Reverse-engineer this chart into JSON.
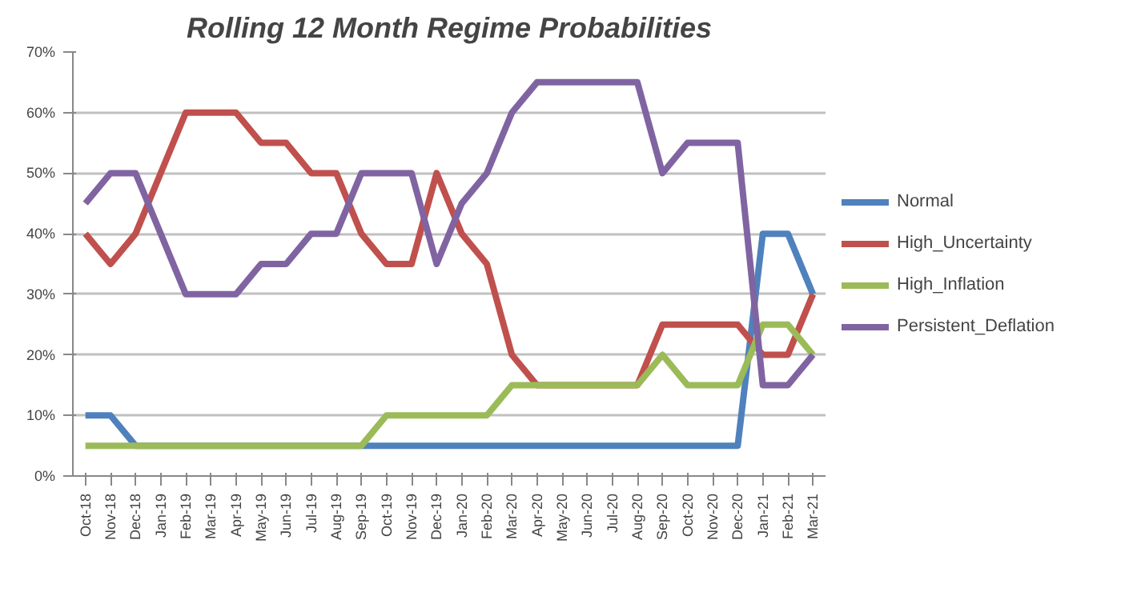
{
  "chart_data": {
    "type": "line",
    "title": "Rolling 12 Month Regime Probabilities",
    "categories": [
      "Oct-18",
      "Nov-18",
      "Dec-18",
      "Jan-19",
      "Feb-19",
      "Mar-19",
      "Apr-19",
      "May-19",
      "Jun-19",
      "Jul-19",
      "Aug-19",
      "Sep-19",
      "Oct-19",
      "Nov-19",
      "Dec-19",
      "Jan-20",
      "Feb-20",
      "Mar-20",
      "Apr-20",
      "May-20",
      "Jun-20",
      "Jul-20",
      "Aug-20",
      "Sep-20",
      "Oct-20",
      "Nov-20",
      "Dec-20",
      "Jan-21",
      "Feb-21",
      "Mar-21"
    ],
    "series": [
      {
        "name": "Normal",
        "color": "#4f81bd",
        "values": [
          10,
          10,
          5,
          5,
          5,
          5,
          5,
          5,
          5,
          5,
          5,
          5,
          5,
          5,
          5,
          5,
          5,
          5,
          5,
          5,
          5,
          5,
          5,
          5,
          5,
          5,
          5,
          40,
          40,
          30
        ]
      },
      {
        "name": "High_Uncertainty",
        "color": "#c0504d",
        "values": [
          40,
          35,
          40,
          50,
          60,
          60,
          60,
          55,
          55,
          50,
          50,
          40,
          35,
          35,
          50,
          40,
          35,
          20,
          15,
          15,
          15,
          15,
          15,
          25,
          25,
          25,
          25,
          20,
          20,
          30
        ]
      },
      {
        "name": "High_Inflation",
        "color": "#9bbb59",
        "values": [
          5,
          5,
          5,
          5,
          5,
          5,
          5,
          5,
          5,
          5,
          5,
          5,
          10,
          10,
          10,
          10,
          10,
          15,
          15,
          15,
          15,
          15,
          15,
          20,
          15,
          15,
          15,
          25,
          25,
          20
        ]
      },
      {
        "name": "Persistent_Deflation",
        "color": "#8064a2",
        "values": [
          45,
          50,
          50,
          40,
          30,
          30,
          30,
          35,
          35,
          40,
          40,
          50,
          50,
          50,
          35,
          45,
          50,
          60,
          65,
          65,
          65,
          65,
          65,
          50,
          55,
          55,
          55,
          15,
          15,
          20
        ]
      }
    ],
    "ylim": [
      0,
      70
    ],
    "yticks": [
      {
        "value": 0,
        "label": "0%"
      },
      {
        "value": 10,
        "label": "10%"
      },
      {
        "value": 20,
        "label": "20%"
      },
      {
        "value": 30,
        "label": "30%"
      },
      {
        "value": 40,
        "label": "40%"
      },
      {
        "value": 50,
        "label": "50%"
      },
      {
        "value": 60,
        "label": "60%"
      },
      {
        "value": 70,
        "label": "70%"
      }
    ],
    "grid": "y",
    "legend": "right",
    "marker": "none",
    "line_style": "solid"
  }
}
